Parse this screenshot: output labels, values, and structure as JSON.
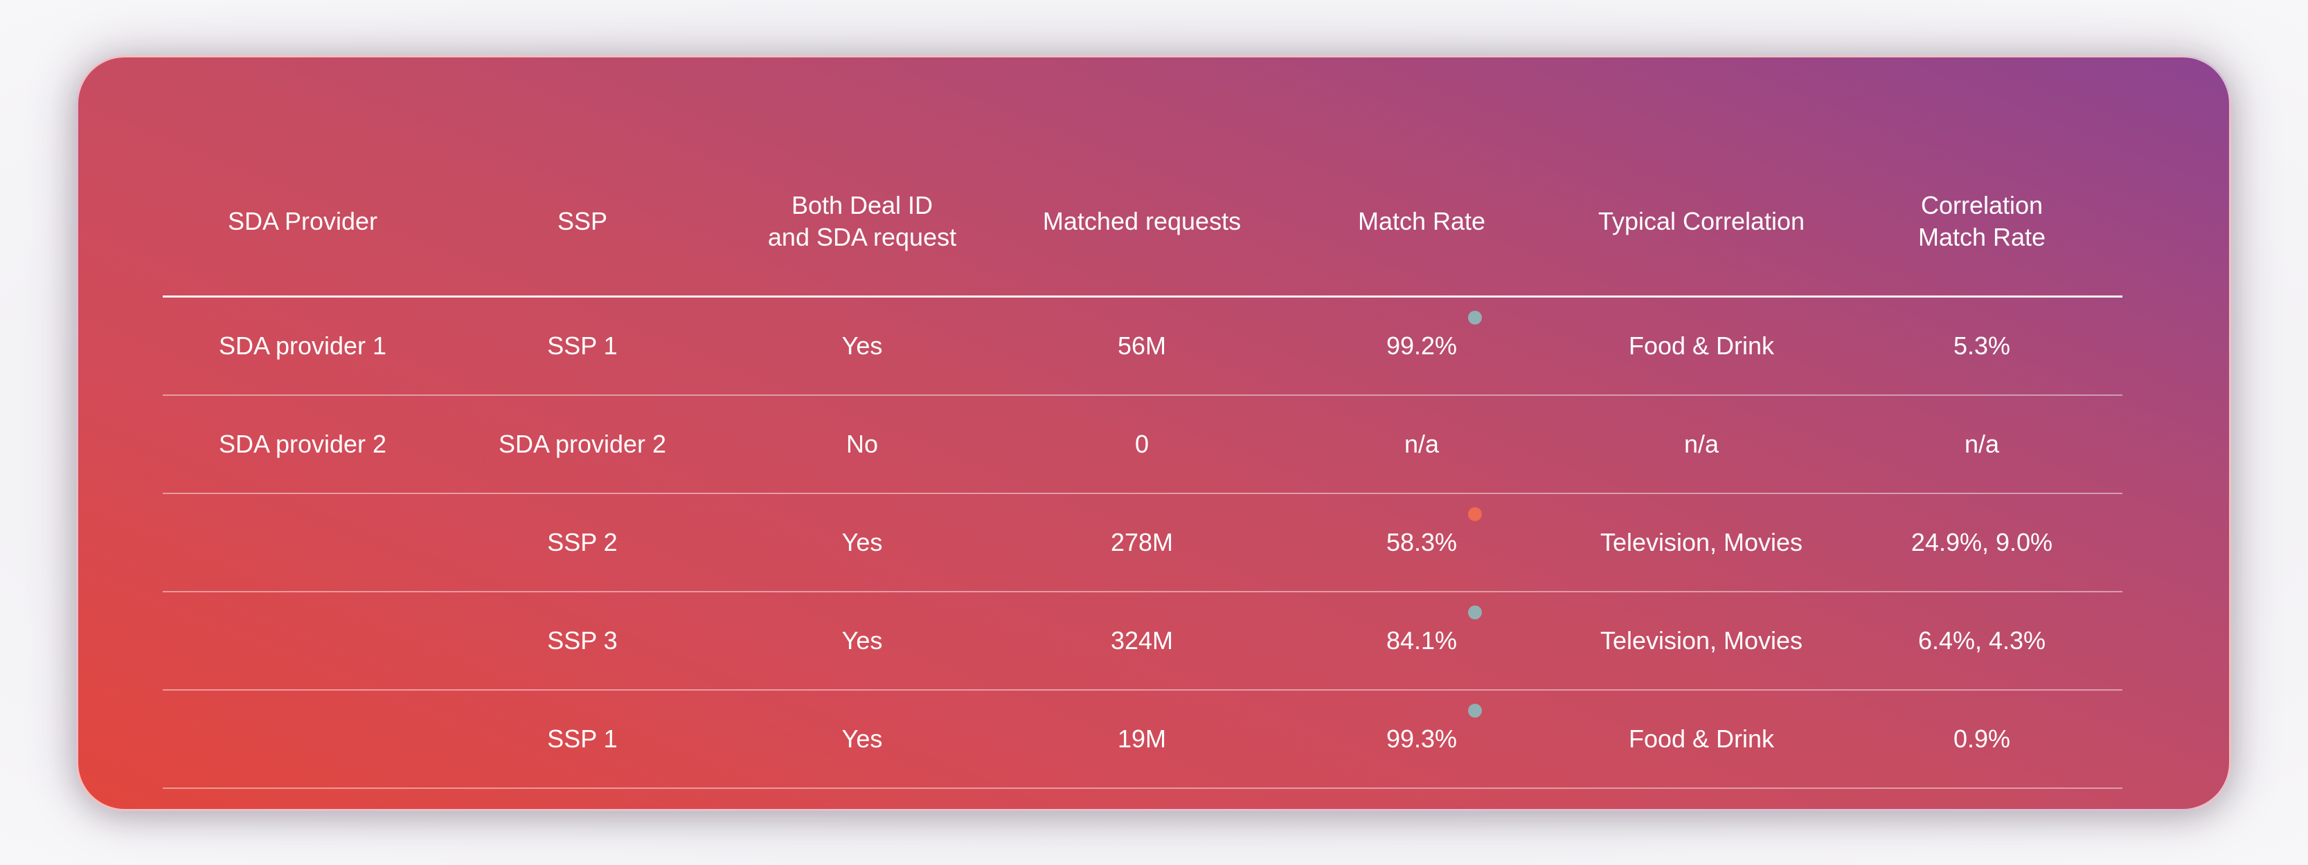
{
  "table": {
    "headers": [
      [
        "SDA Provider"
      ],
      [
        "SSP"
      ],
      [
        "Both Deal ID",
        "and SDA request"
      ],
      [
        "Matched requests"
      ],
      [
        "Match Rate"
      ],
      [
        "Typical Correlation"
      ],
      [
        "Correlation",
        "Match Rate"
      ]
    ],
    "rows": [
      {
        "provider": "SDA provider 1",
        "ssp": "SSP 1",
        "both": "Yes",
        "matched": "56M",
        "rate": "99.2%",
        "status": "good",
        "correlation": "Food & Drink",
        "corr_rate": "5.3%"
      },
      {
        "provider": "SDA provider 2",
        "ssp": "SDA provider 2",
        "both": "No",
        "matched": "0",
        "rate": "n/a",
        "status": "",
        "correlation": "n/a",
        "corr_rate": "n/a"
      },
      {
        "provider": "",
        "ssp": "SSP 2",
        "both": "Yes",
        "matched": "278M",
        "rate": "58.3%",
        "status": "bad",
        "correlation": "Television, Movies",
        "corr_rate": "24.9%, 9.0%"
      },
      {
        "provider": "",
        "ssp": "SSP 3",
        "both": "Yes",
        "matched": "324M",
        "rate": "84.1%",
        "status": "good",
        "correlation": "Television, Movies",
        "corr_rate": "6.4%, 4.3%"
      },
      {
        "provider": "",
        "ssp": "SSP 1",
        "both": "Yes",
        "matched": "19M",
        "rate": "99.3%",
        "status": "good",
        "correlation": "Food & Drink",
        "corr_rate": "0.9%"
      }
    ]
  },
  "colors": {
    "status_good": "#8fb1b4",
    "status_bad": "#ee6a50"
  }
}
